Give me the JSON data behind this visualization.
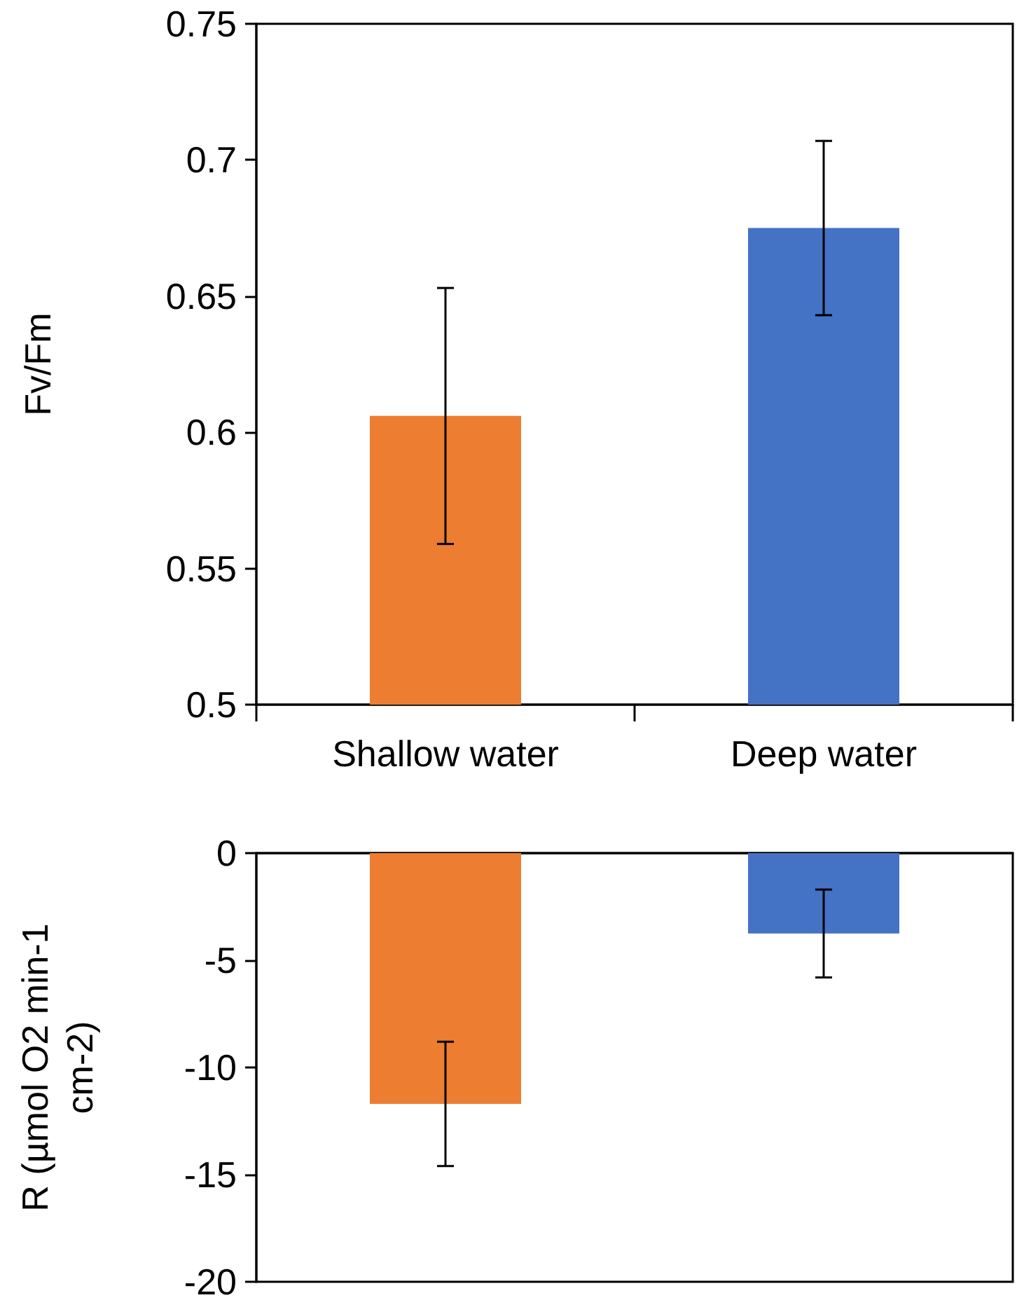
{
  "chart_data": [
    {
      "type": "bar",
      "ylabel": "Fv/Fm",
      "categories": [
        "Shallow water",
        "Deep water"
      ],
      "values": [
        0.606,
        0.675
      ],
      "colors": [
        "#ed7d31",
        "#4472c4"
      ],
      "errors": [
        0.047,
        0.032
      ],
      "ylim": [
        0.5,
        0.75
      ],
      "yticks": [
        0.5,
        0.55,
        0.6,
        0.65,
        0.7,
        0.75
      ]
    },
    {
      "type": "bar",
      "ylabel": "R (µmol O2 min-1 cm-2)",
      "categories": [
        null,
        null
      ],
      "values": [
        -11.7,
        -3.75
      ],
      "colors": [
        "#ed7d31",
        "#4472c4"
      ],
      "errors": [
        2.9,
        2.05
      ],
      "ylim": [
        -20,
        0
      ],
      "yticks": [
        -20,
        -15,
        -10,
        -5,
        0
      ],
      "tick_labels": "y"
    }
  ]
}
